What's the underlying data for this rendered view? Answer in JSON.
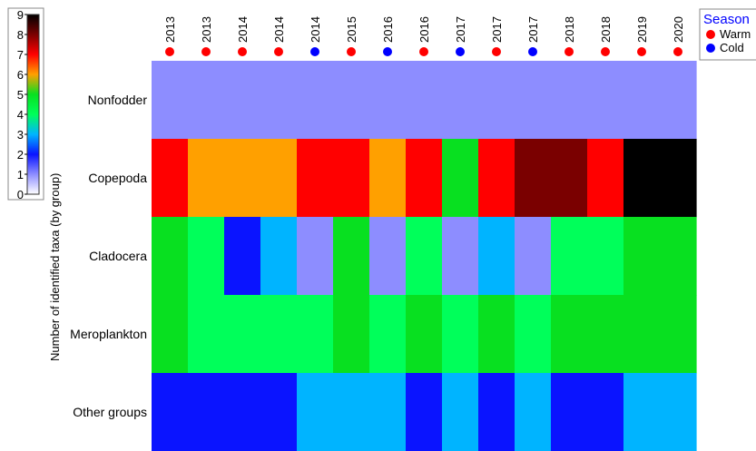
{
  "chart_data": {
    "type": "heatmap",
    "colorbar": {
      "title": "Number of identified taxa (by group)",
      "ticks": [
        "0",
        "1",
        "2",
        "3",
        "4",
        "5",
        "6",
        "7",
        "8",
        "9"
      ],
      "min": 0,
      "max": 9,
      "colors": [
        "#ffffff",
        "#8d8dff",
        "#0a14ff",
        "#00b4ff",
        "#00ff5a",
        "#08e020",
        "#ffa000",
        "#ff0000",
        "#7a0000",
        "#000000"
      ]
    },
    "columns": [
      {
        "year": "2013",
        "season": "Warm"
      },
      {
        "year": "2013",
        "season": "Warm"
      },
      {
        "year": "2014",
        "season": "Warm"
      },
      {
        "year": "2014",
        "season": "Warm"
      },
      {
        "year": "2014",
        "season": "Cold"
      },
      {
        "year": "2015",
        "season": "Warm"
      },
      {
        "year": "2016",
        "season": "Cold"
      },
      {
        "year": "2016",
        "season": "Warm"
      },
      {
        "year": "2017",
        "season": "Cold"
      },
      {
        "year": "2017",
        "season": "Warm"
      },
      {
        "year": "2017",
        "season": "Cold"
      },
      {
        "year": "2018",
        "season": "Warm"
      },
      {
        "year": "2018",
        "season": "Warm"
      },
      {
        "year": "2019",
        "season": "Warm"
      },
      {
        "year": "2020",
        "season": "Warm"
      }
    ],
    "rows": [
      {
        "name": "Nonfodder",
        "values": [
          1,
          1,
          1,
          1,
          1,
          1,
          1,
          1,
          1,
          1,
          1,
          1,
          1,
          1,
          1
        ]
      },
      {
        "name": "Copepoda",
        "values": [
          7,
          6,
          6,
          6,
          7,
          7,
          6,
          7,
          5,
          7,
          8,
          8,
          7,
          9,
          9
        ]
      },
      {
        "name": "Cladocera",
        "values": [
          5,
          4,
          2,
          3,
          1,
          5,
          1,
          4,
          1,
          3,
          1,
          4,
          4,
          5,
          5
        ]
      },
      {
        "name": "Meroplankton",
        "values": [
          5,
          4,
          4,
          4,
          4,
          5,
          4,
          5,
          4,
          5,
          4,
          5,
          5,
          5,
          5
        ]
      },
      {
        "name": "Other groups",
        "values": [
          2,
          2,
          2,
          2,
          3,
          3,
          3,
          2,
          3,
          2,
          3,
          2,
          2,
          3,
          3
        ]
      }
    ],
    "legend": {
      "title": "Season",
      "items": [
        {
          "label": "Warm",
          "color": "#ff0000"
        },
        {
          "label": "Cold",
          "color": "#0000ff"
        }
      ]
    }
  }
}
